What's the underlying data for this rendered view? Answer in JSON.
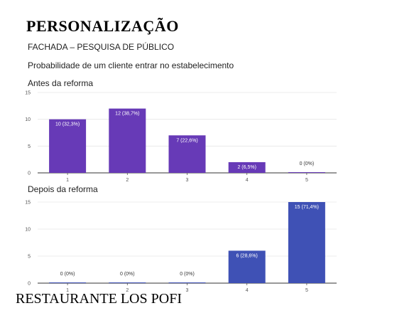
{
  "header": {
    "title": "PERSONALIZAÇÃO",
    "subtitle": "FACHADA – PESQUISA DE PÚBLICO",
    "question": "Probabilidade de um cliente entrar no estabelecimento"
  },
  "footer": {
    "text": "RESTAURANTE LOS POFI"
  },
  "colors": {
    "before": "#673ab7",
    "after": "#3f51b5"
  },
  "chart_data": [
    {
      "type": "bar",
      "title": "Antes da reforma",
      "categories": [
        "1",
        "2",
        "3",
        "4",
        "5"
      ],
      "values": [
        10,
        12,
        7,
        2,
        0
      ],
      "data_labels": [
        "10 (32,3%)",
        "12 (38,7%)",
        "7 (22,6%)",
        "2 (6,5%)",
        "0 (0%)"
      ],
      "ylim": [
        0,
        15
      ],
      "yticks": [
        0,
        5,
        10,
        15
      ],
      "grid": true,
      "color": "#673ab7"
    },
    {
      "type": "bar",
      "title": "Depois da reforma",
      "categories": [
        "1",
        "2",
        "3",
        "4",
        "5"
      ],
      "values": [
        0,
        0,
        0,
        6,
        15
      ],
      "data_labels": [
        "0 (0%)",
        "0 (0%)",
        "0 (0%)",
        "6 (28,6%)",
        "15 (71,4%)"
      ],
      "ylim": [
        0,
        15
      ],
      "yticks": [
        0,
        5,
        10,
        15
      ],
      "grid": true,
      "color": "#3f51b5"
    }
  ]
}
